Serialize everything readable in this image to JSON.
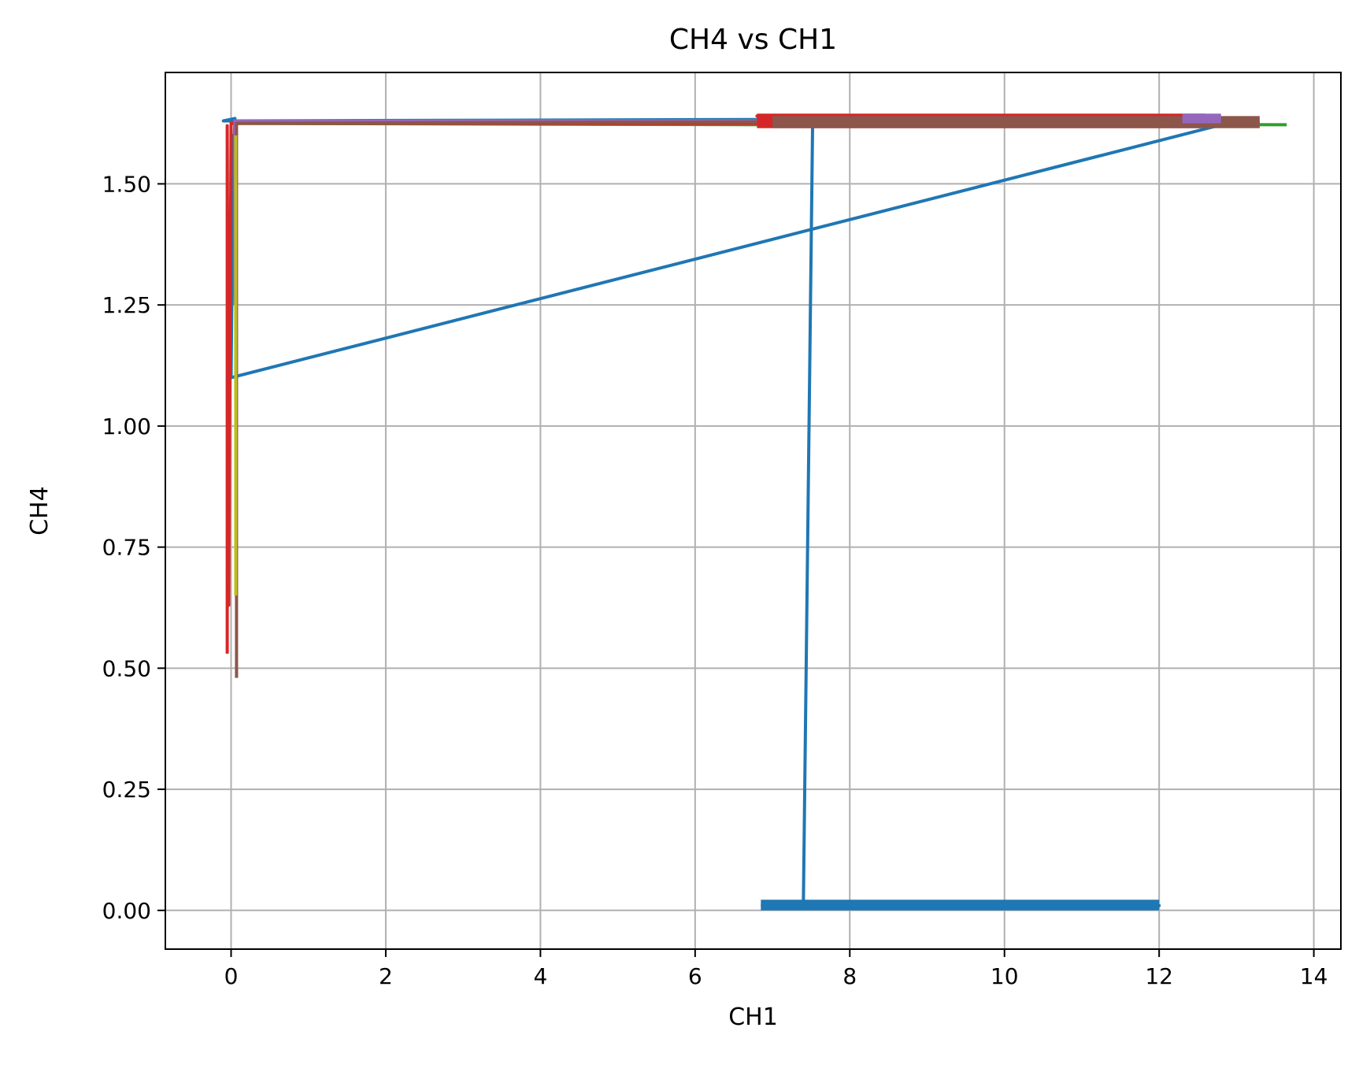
{
  "chart_data": {
    "type": "line",
    "title": "CH4 vs CH1",
    "xlabel": "CH1",
    "ylabel": "CH4",
    "xlim": [
      -0.85,
      14.35
    ],
    "ylim": [
      -0.08,
      1.73
    ],
    "x_ticks": [
      0,
      2,
      4,
      6,
      8,
      10,
      12,
      14
    ],
    "x_tick_labels": [
      "0",
      "2",
      "4",
      "6",
      "8",
      "10",
      "12",
      "14"
    ],
    "y_ticks": [
      0.0,
      0.25,
      0.5,
      0.75,
      1.0,
      1.25,
      1.5
    ],
    "y_tick_labels": [
      "0.00",
      "0.25",
      "0.50",
      "0.75",
      "1.00",
      "1.25",
      "1.50"
    ],
    "grid": true,
    "legend": "none",
    "series": [
      {
        "color": "#1f77b4",
        "x": [
          6.85,
          12.0,
          7.4,
          7.52,
          6.85,
          12.1,
          -0.1,
          0.05,
          -0.02,
          0.03,
          0.0,
          13.0
        ],
        "y": [
          0.01,
          0.01,
          0.01,
          1.63,
          1.63,
          1.635,
          1.63,
          1.635,
          1.3,
          1.6,
          1.1,
          1.63
        ]
      },
      {
        "color": "#ff7f0e",
        "x": [
          0.0,
          7.0,
          7.0,
          13.0
        ],
        "y": [
          1.625,
          1.625,
          1.635,
          1.628
        ]
      },
      {
        "color": "#2ca02c",
        "x": [
          0.0,
          7.0,
          7.0,
          13.65
        ],
        "y": [
          1.625,
          1.622,
          1.625,
          1.622
        ]
      },
      {
        "color": "#d62728",
        "x": [
          -0.05,
          -0.05,
          -0.03,
          0.0,
          7.0,
          6.8,
          13.3
        ],
        "y": [
          0.53,
          1.62,
          0.63,
          1.625,
          1.625,
          1.64,
          1.625
        ]
      },
      {
        "color": "#9467bd",
        "x": [
          0.05,
          0.05,
          0.05,
          7.0,
          7.0,
          12.8
        ],
        "y": [
          1.25,
          1.63,
          1.63,
          1.63,
          1.632,
          1.635
        ]
      },
      {
        "color": "#8c564b",
        "x": [
          0.07,
          0.07,
          0.07,
          7.0,
          7.0,
          13.0
        ],
        "y": [
          0.48,
          1.625,
          1.625,
          1.628,
          1.625,
          1.625
        ]
      },
      {
        "color": "#bcbd22",
        "x": [
          0.06,
          0.06
        ],
        "y": [
          0.65,
          1.6
        ]
      }
    ]
  }
}
